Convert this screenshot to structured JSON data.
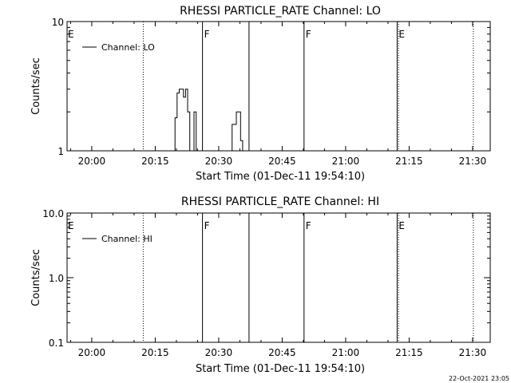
{
  "chart_data": [
    {
      "type": "line",
      "title": "RHESSI PARTICLE_RATE Channel: LO",
      "xlabel": "Start Time (01-Dec-11 19:54:10)",
      "ylabel": "Counts/sec",
      "x_unit": "time of day (HH:MM:SS), 01-Dec-2011",
      "xlim": [
        "19:54:10",
        "21:34:10"
      ],
      "ylim": [
        1,
        10
      ],
      "y_scale": "log",
      "x_ticks": [
        "20:00",
        "20:15",
        "20:30",
        "20:45",
        "21:00",
        "21:15",
        "21:30"
      ],
      "y_ticks": [
        "1",
        "10"
      ],
      "legend": {
        "placement": "top-left",
        "entries": [
          "Channel: LO"
        ]
      },
      "series": [
        {
          "name": "Channel: LO",
          "x": [
            "20:19:10",
            "20:19:40",
            "20:20:10",
            "20:20:40",
            "20:21:10",
            "20:21:40",
            "20:22:10",
            "20:22:40",
            "20:23:10",
            "20:23:40",
            "20:24:10",
            "20:24:40",
            "20:25:10",
            "20:25:40",
            "20:32:40",
            "20:33:10",
            "20:33:40",
            "20:34:10",
            "20:34:40",
            "20:35:10",
            "20:35:40"
          ],
          "y": [
            1,
            1.8,
            2.8,
            3,
            3,
            2.6,
            3,
            2,
            1,
            1,
            2,
            1,
            1,
            1,
            1,
            1.6,
            1.6,
            2,
            2,
            1.2,
            1
          ]
        }
      ],
      "markers": [
        {
          "time": "20:12:10",
          "label": "",
          "style": "dotted"
        },
        {
          "time": "20:26:10",
          "label": "F",
          "style": "solid"
        },
        {
          "time": "20:37:10",
          "label": "",
          "style": "solid"
        },
        {
          "time": "20:50:10",
          "label": "F",
          "style": "solid"
        },
        {
          "time": "21:12:10",
          "label": "E",
          "style": "solid"
        },
        {
          "time": "21:12:30",
          "label": "",
          "style": "dotted"
        },
        {
          "time": "21:30:10",
          "label": "",
          "style": "dotted"
        }
      ],
      "left_edge_label": "E"
    },
    {
      "type": "line",
      "title": "RHESSI PARTICLE_RATE Channel: HI",
      "xlabel": "Start Time (01-Dec-11 19:54:10)",
      "ylabel": "Counts/sec",
      "x_unit": "time of day (HH:MM:SS), 01-Dec-2011",
      "xlim": [
        "19:54:10",
        "21:34:10"
      ],
      "ylim": [
        0.1,
        10
      ],
      "y_scale": "log",
      "x_ticks": [
        "20:00",
        "20:15",
        "20:30",
        "20:45",
        "21:00",
        "21:15",
        "21:30"
      ],
      "y_ticks": [
        "0.1",
        "1.0",
        "10.0"
      ],
      "legend": {
        "placement": "top-left",
        "entries": [
          "Channel: HI"
        ]
      },
      "series": [
        {
          "name": "Channel: HI",
          "x": [],
          "y": []
        }
      ],
      "markers": [
        {
          "time": "20:12:10",
          "label": "",
          "style": "dotted"
        },
        {
          "time": "20:26:10",
          "label": "F",
          "style": "solid"
        },
        {
          "time": "20:37:10",
          "label": "",
          "style": "solid"
        },
        {
          "time": "20:50:10",
          "label": "F",
          "style": "solid"
        },
        {
          "time": "21:12:10",
          "label": "E",
          "style": "solid"
        },
        {
          "time": "21:12:30",
          "label": "",
          "style": "dotted"
        },
        {
          "time": "21:30:10",
          "label": "",
          "style": "dotted"
        }
      ],
      "left_edge_label": "E"
    }
  ],
  "footer": {
    "timestamp": "22-Oct-2021 23:05"
  }
}
